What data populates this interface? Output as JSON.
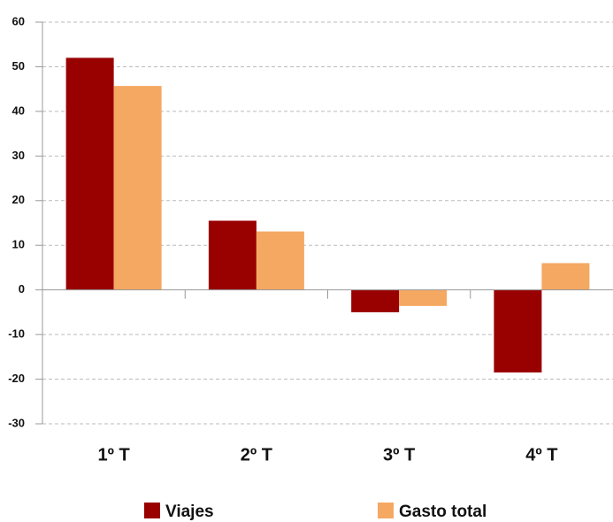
{
  "chart_data": {
    "type": "bar",
    "categories": [
      "1º T",
      "2º T",
      "3º T",
      "4º T"
    ],
    "series": [
      {
        "name": "Viajes",
        "color": "#990000",
        "values": [
          52,
          15.5,
          -5,
          -18.5
        ]
      },
      {
        "name": "Gasto total",
        "color": "#f5a862",
        "values": [
          45.7,
          13.1,
          -3.6,
          6
        ]
      }
    ],
    "ylim": [
      -30,
      60
    ],
    "yticks": [
      -30,
      -20,
      -10,
      0,
      10,
      20,
      30,
      40,
      50,
      60
    ],
    "grid": true,
    "legend": "bottom"
  }
}
